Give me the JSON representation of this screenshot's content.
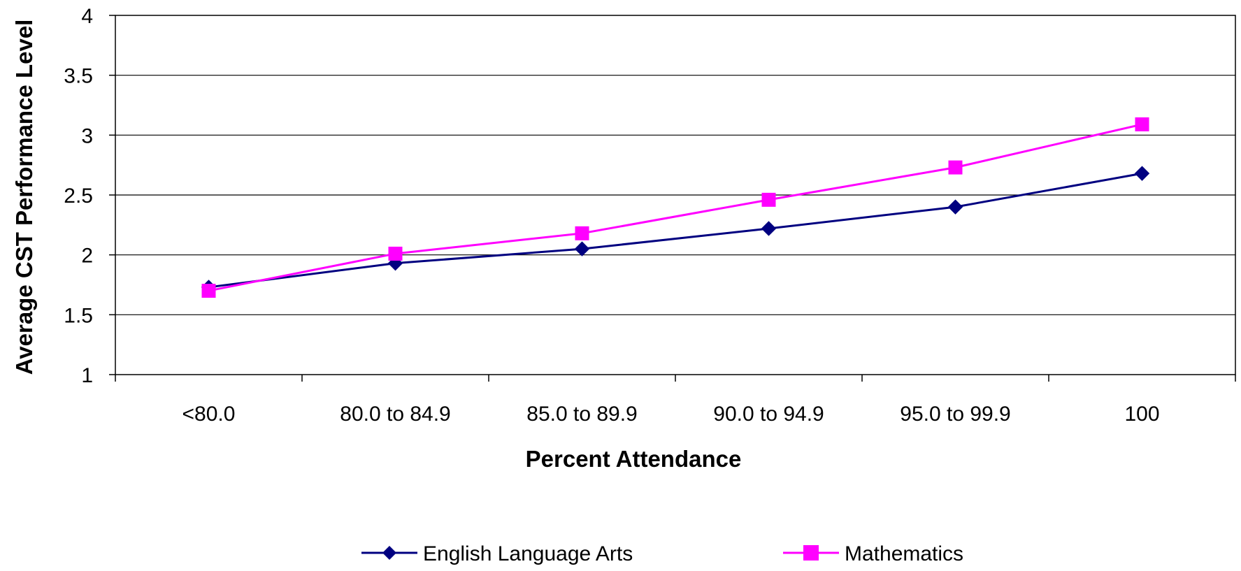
{
  "colors": {
    "background": "#ffffff",
    "plot_border": "#000000",
    "gridline": "#000000",
    "english_series": "#000080",
    "math_series": "#ff00ff"
  },
  "chart_data": {
    "type": "line",
    "title": "",
    "xlabel": "Percent Attendance",
    "ylabel": "Average CST Performance Level",
    "categories": [
      "<80.0",
      "80.0 to 84.9",
      "85.0 to 89.9",
      "90.0 to 94.9",
      "95.0 to 99.9",
      "100"
    ],
    "ylim": [
      1,
      4
    ],
    "yticks": [
      1,
      1.5,
      2,
      2.5,
      3,
      3.5,
      4
    ],
    "ytick_labels": [
      "1",
      "1.5",
      "2",
      "2.5",
      "3",
      "3.5",
      "4"
    ],
    "grid": true,
    "legend_position": "bottom",
    "series": [
      {
        "name": "English Language Arts",
        "marker": "diamond",
        "color": "#000080",
        "values": [
          1.73,
          1.93,
          2.05,
          2.22,
          2.4,
          2.68
        ]
      },
      {
        "name": "Mathematics",
        "marker": "square",
        "color": "#ff00ff",
        "values": [
          1.7,
          2.01,
          2.18,
          2.46,
          2.73,
          3.09
        ]
      }
    ]
  }
}
